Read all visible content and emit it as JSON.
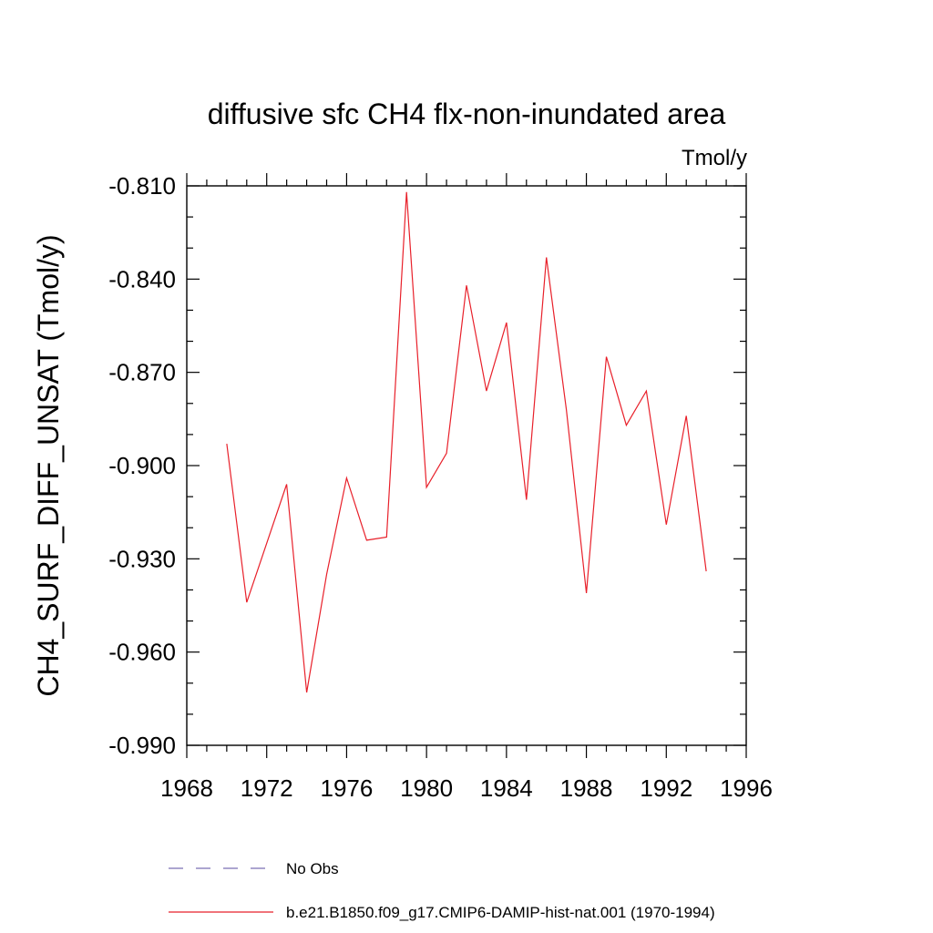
{
  "chart_data": {
    "type": "line",
    "title": "diffusive sfc CH4 flx-non-inundated area",
    "units": "Tmol/y",
    "ylabel": "CH4_SURF_DIFF_UNSAT  (Tmol/y)",
    "xlabel": "",
    "xlim": [
      1968,
      1996
    ],
    "ylim": [
      -0.99,
      -0.81
    ],
    "xticks": [
      1968,
      1972,
      1976,
      1980,
      1984,
      1988,
      1992,
      1996
    ],
    "xtick_labels": [
      "1968",
      "1972",
      "1976",
      "1980",
      "1984",
      "1988",
      "1992",
      "1996"
    ],
    "yticks": [
      -0.81,
      -0.84,
      -0.87,
      -0.9,
      -0.93,
      -0.96,
      -0.99
    ],
    "ytick_labels": [
      "-0.810",
      "-0.840",
      "-0.870",
      "-0.900",
      "-0.930",
      "-0.960",
      "-0.990"
    ],
    "grid": false,
    "legend_position": "bottom",
    "series": [
      {
        "name": "No Obs",
        "color": "#7b6fb5",
        "style": "dashed",
        "x": [],
        "y": []
      },
      {
        "name": "b.e21.B1850.f09_g17.CMIP6-DAMIP-hist-nat.001 (1970-1994)",
        "color": "#e8202a",
        "style": "solid",
        "x": [
          1970,
          1971,
          1972,
          1973,
          1974,
          1975,
          1976,
          1977,
          1978,
          1979,
          1980,
          1981,
          1982,
          1983,
          1984,
          1985,
          1986,
          1987,
          1988,
          1989,
          1990,
          1991,
          1992,
          1993,
          1994
        ],
        "y": [
          -0.893,
          -0.944,
          -0.925,
          -0.906,
          -0.973,
          -0.935,
          -0.904,
          -0.924,
          -0.923,
          -0.812,
          -0.907,
          -0.896,
          -0.842,
          -0.876,
          -0.854,
          -0.911,
          -0.833,
          -0.882,
          -0.941,
          -0.865,
          -0.887,
          -0.876,
          -0.919,
          -0.884,
          -0.934
        ]
      }
    ]
  }
}
